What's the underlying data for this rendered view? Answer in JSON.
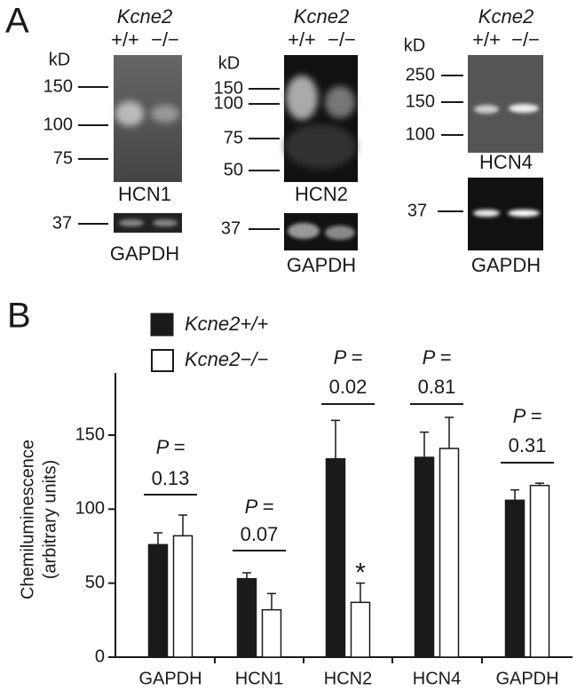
{
  "panel_a": {
    "label": "A",
    "blots": [
      {
        "genotype": "Kcne2",
        "lanes": [
          "+/+",
          "−/−"
        ],
        "unit": "kD",
        "markers": [
          150,
          100,
          75
        ],
        "protein": "HCN1",
        "control_marker": 37,
        "control": "GAPDH"
      },
      {
        "genotype": "Kcne2",
        "lanes": [
          "+/+",
          "−/−"
        ],
        "unit": "kD",
        "markers": [
          150,
          100,
          75,
          50
        ],
        "protein": "HCN2",
        "control_marker": 37,
        "control": "GAPDH"
      },
      {
        "genotype": "Kcne2",
        "lanes": [
          "+/+",
          "−/−"
        ],
        "unit": "kD",
        "markers": [
          250,
          150,
          100
        ],
        "protein": "HCN4",
        "control_marker": 37,
        "control": "GAPDH"
      }
    ]
  },
  "chart_data": {
    "type": "bar",
    "panel_label": "B",
    "y_label": [
      "Chemiluminescence",
      "(arbitrary units)"
    ],
    "categories": [
      "GAPDH",
      "HCN1",
      "HCN2",
      "HCN4",
      "GAPDH"
    ],
    "series": [
      {
        "name": "Kcne2+/+",
        "color": "#1a1a1a",
        "values": [
          76,
          53,
          134,
          135,
          106
        ],
        "errors": [
          8,
          4,
          26,
          17,
          7
        ]
      },
      {
        "name": "Kcne2−/−",
        "color": "#ffffff",
        "values": [
          82,
          32,
          37,
          141,
          116
        ],
        "errors": [
          14,
          11,
          13,
          21,
          1.5
        ]
      }
    ],
    "p_labels": [
      "P =",
      "P =",
      "P =",
      "P =",
      "P ="
    ],
    "p_values": [
      "0.13",
      "0.07",
      "0.02",
      "0.81",
      "0.31"
    ],
    "significance": {
      "category": 2,
      "series": 1,
      "text": "*"
    },
    "ylim": [
      0,
      192
    ],
    "yticks": [
      0,
      50,
      100,
      150
    ]
  }
}
